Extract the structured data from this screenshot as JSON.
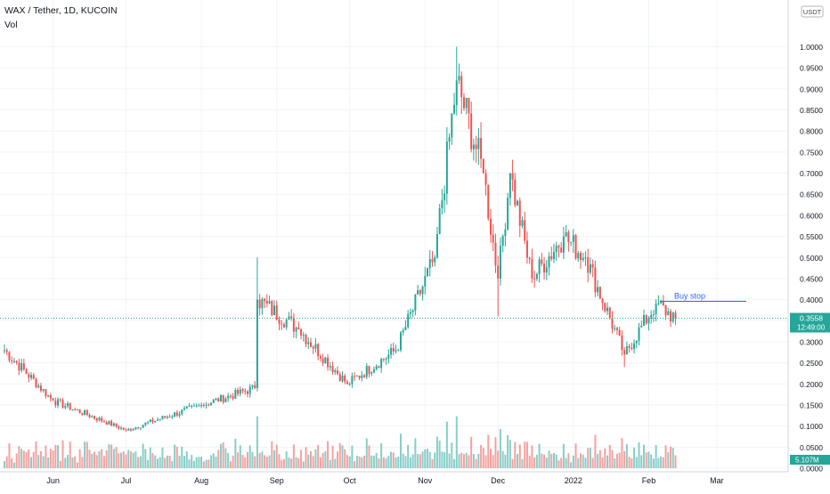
{
  "legend": {
    "symbol": "WAX / Tether, 1D, KUCOIN",
    "volume": "Vol"
  },
  "currency_badge": "USDT",
  "price_badge": {
    "price": "0.3558",
    "countdown": "12:49:00"
  },
  "volume_badge": "5.107M",
  "annotation": {
    "text": "Buy stop",
    "price": 0.396
  },
  "colors": {
    "up": "#26a69a",
    "down": "#ef5350",
    "annotation": "#2962ff",
    "badge": "#26a69a",
    "grid": "#f0f3fa",
    "axis_text": "#131722"
  },
  "chart_data": {
    "type": "candlestick",
    "title": "WAX / Tether, 1D, KUCOIN",
    "ylim": [
      0.0,
      1.0
    ],
    "y_ticks": [
      "1.0000",
      "0.9500",
      "0.9000",
      "0.8500",
      "0.8000",
      "0.7500",
      "0.7000",
      "0.6500",
      "0.6000",
      "0.5500",
      "0.5000",
      "0.4500",
      "0.4000",
      "0.3500",
      "0.3000",
      "0.2500",
      "0.2000",
      "0.1500",
      "0.1000",
      "0.0500",
      "0.0000"
    ],
    "x_ticks": [
      "Jun",
      "Jul",
      "Aug",
      "Sep",
      "Oct",
      "Nov",
      "Dec",
      "2022",
      "Feb",
      "Mar"
    ],
    "current_price": 0.3558,
    "key_points": [
      {
        "date": "May 12",
        "close": 0.28
      },
      {
        "date": "Jun 1",
        "close": 0.16
      },
      {
        "date": "Jul 1",
        "close": 0.09
      },
      {
        "date": "Aug 1",
        "close": 0.15
      },
      {
        "date": "Aug 23",
        "close": 0.19
      },
      {
        "date": "Aug 24",
        "high": 0.5,
        "close": 0.4
      },
      {
        "date": "Sep 10",
        "close": 0.33
      },
      {
        "date": "Sep 30",
        "close": 0.2
      },
      {
        "date": "Oct 20",
        "close": 0.28
      },
      {
        "date": "Nov 5",
        "close": 0.5
      },
      {
        "date": "Nov 14",
        "high": 1.0,
        "close": 0.92
      },
      {
        "date": "Nov 25",
        "close": 0.7
      },
      {
        "date": "Dec 1",
        "close": 0.45,
        "low": 0.36
      },
      {
        "date": "Dec 6",
        "close": 0.7
      },
      {
        "date": "Dec 15",
        "close": 0.45
      },
      {
        "date": "Dec 28",
        "close": 0.55
      },
      {
        "date": "Jan 6",
        "close": 0.5
      },
      {
        "date": "Jan 22",
        "close": 0.27,
        "low": 0.24
      },
      {
        "date": "Feb 4",
        "close": 0.39
      },
      {
        "date": "Feb 12",
        "close": 0.3558
      }
    ],
    "volume_ylim": [
      0,
      0.07
    ]
  }
}
